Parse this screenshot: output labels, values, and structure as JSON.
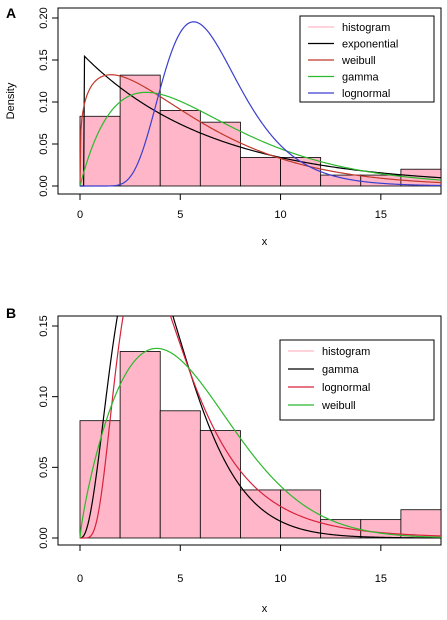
{
  "chart_data": [
    {
      "panel": "A",
      "type": "bar",
      "title": "",
      "xlabel": "x",
      "ylabel": "Density",
      "xlim": [
        0,
        18
      ],
      "ylim": [
        0,
        0.2
      ],
      "xticks": [
        "0",
        "5",
        "10",
        "15"
      ],
      "yticks": [
        "0.00",
        "0.05",
        "0.10",
        "0.15",
        "0.20"
      ],
      "histogram": {
        "bin_edges": [
          0,
          2,
          4,
          6,
          8,
          10,
          12,
          14,
          16,
          18
        ],
        "values": [
          0.083,
          0.132,
          0.09,
          0.076,
          0.034,
          0.034,
          0.013,
          0.013,
          0.02
        ],
        "fill": "#ffb6c8",
        "edge": "#000000"
      },
      "legend": {
        "position": "top-right",
        "entries": [
          "histogram",
          "exponential",
          "weibull",
          "gamma",
          "lognormal"
        ]
      },
      "series": [
        {
          "name": "histogram",
          "color": "#ffb6c8"
        },
        {
          "name": "exponential",
          "color": "#000000",
          "dist": "exponential",
          "params": {
            "rate": 0.155
          },
          "shift": 0.2
        },
        {
          "name": "weibull",
          "color": "#c0392b",
          "dist": "weibull",
          "params": {
            "shape": 1.25,
            "scale": 5.6
          },
          "shift": 0
        },
        {
          "name": "gamma",
          "color": "#2eb82e",
          "dist": "gamma",
          "params": {
            "shape": 2.0,
            "scale": 3.3
          },
          "shift": 0
        },
        {
          "name": "lognormal",
          "color": "#3a3fcf",
          "dist": "lognormal",
          "params": {
            "meanlog": 1.85,
            "sdlog": 0.34
          },
          "shift": 0
        }
      ]
    },
    {
      "panel": "B",
      "type": "bar",
      "title": "",
      "xlabel": "x",
      "ylabel": "",
      "xlim": [
        0,
        18
      ],
      "ylim": [
        0,
        0.15
      ],
      "xticks": [
        "0",
        "5",
        "10",
        "15"
      ],
      "yticks": [
        "0.00",
        "0.05",
        "0.10",
        "0.15"
      ],
      "histogram": {
        "bin_edges": [
          0,
          2,
          4,
          6,
          8,
          10,
          12,
          14,
          16,
          18
        ],
        "values": [
          0.083,
          0.132,
          0.09,
          0.076,
          0.034,
          0.034,
          0.013,
          0.013,
          0.02
        ],
        "fill": "#ffb6c8",
        "edge": "#000000"
      },
      "legend": {
        "position": "top-right",
        "entries": [
          "histogram",
          "gamma",
          "lognormal",
          "weibull"
        ]
      },
      "series": [
        {
          "name": "histogram",
          "color": "#ffb6c8"
        },
        {
          "name": "gamma",
          "color": "#000000",
          "dist": "gamma",
          "params": {
            "shape": 3.6,
            "scale": 1.17
          },
          "shift": 0
        },
        {
          "name": "lognormal",
          "color": "#d6223c",
          "dist": "lognormal",
          "params": {
            "meanlog": 1.45,
            "sdlog": 0.56
          },
          "shift": 0
        },
        {
          "name": "weibull",
          "color": "#2eb82e",
          "dist": "weibull",
          "params": {
            "shape": 1.8,
            "scale": 6.0
          },
          "shift": 0
        }
      ]
    }
  ]
}
